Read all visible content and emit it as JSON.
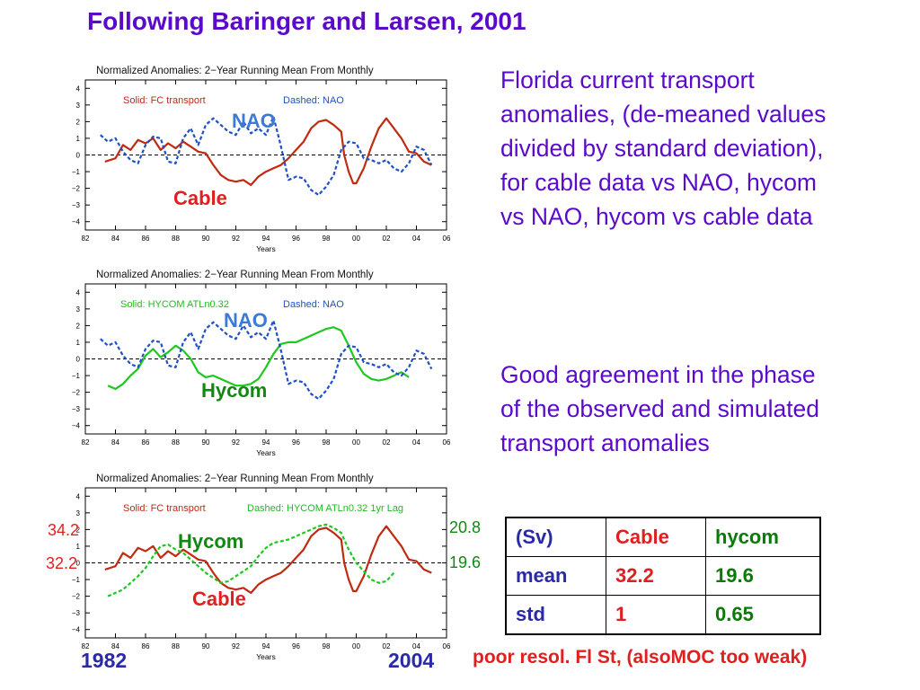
{
  "slide": {
    "title": "Following Baringer and Larsen, 2001",
    "paragraph1": "Florida current transport anomalies, (de-meaned values divided by standard deviation), for cable data vs NAO, hycom vs NAO, hycom vs cable data",
    "paragraph2": "Good agreement in the phase of the observed and simulated transport anomalies",
    "note": "poor resol. Fl St, (alsoMOC too weak)",
    "year_start": "1982",
    "year_end": "2004"
  },
  "colors": {
    "text_purple": "#5a0ac8",
    "red": "#c02a10",
    "green": "#1ec81e",
    "nao_blue": "#1e50c8",
    "label_blue": "#3c7ad8"
  },
  "table": {
    "header": [
      "(Sv)",
      "Cable",
      "hycom"
    ],
    "rows": [
      [
        "mean",
        "32.2",
        "19.6"
      ],
      [
        "std",
        "1",
        "0.65"
      ]
    ]
  },
  "chart_data": [
    {
      "type": "line",
      "title": "Normalized Anomalies: 2−Year Running Mean From Monthly",
      "xlabel": "Years",
      "ylabel": "",
      "xlim": [
        82,
        106
      ],
      "ylim": [
        -4.5,
        4.5
      ],
      "xticks": [
        "82",
        "84",
        "86",
        "88",
        "90",
        "92",
        "94",
        "96",
        "98",
        "00",
        "02",
        "04",
        "06"
      ],
      "yticks": [
        "4",
        "3",
        "2",
        "1",
        "0",
        "−1",
        "−2",
        "−3",
        "−4"
      ],
      "grid": false,
      "legend": [
        "Solid: FC transport",
        "Dashed: NAO"
      ],
      "series": [
        {
          "name": "FC transport",
          "style": "solid",
          "color": "#c02a10",
          "x": [
            83.3,
            84,
            84.5,
            85,
            85.5,
            86,
            86.5,
            87,
            87.5,
            88,
            88.5,
            89,
            89.5,
            90,
            90.5,
            91,
            91.5,
            92,
            92.5,
            93,
            93.5,
            94,
            94.5,
            95,
            95.5,
            96,
            96.5,
            97,
            97.5,
            98,
            98.5,
            99,
            99.2,
            99.5,
            99.8,
            100,
            100.5,
            101,
            101.5,
            102,
            102.5,
            103,
            103.5,
            104,
            104.5,
            105
          ],
          "y": [
            -0.4,
            -0.2,
            0.6,
            0.3,
            0.9,
            0.7,
            1.0,
            0.3,
            0.7,
            0.4,
            0.8,
            0.5,
            0.2,
            0.1,
            -0.6,
            -1.2,
            -1.5,
            -1.6,
            -1.5,
            -1.8,
            -1.3,
            -1.0,
            -0.8,
            -0.6,
            -0.2,
            0.3,
            0.8,
            1.6,
            2.0,
            2.1,
            1.8,
            1.4,
            0.0,
            -1.0,
            -1.7,
            -1.7,
            -0.8,
            0.5,
            1.6,
            2.2,
            1.6,
            1.0,
            0.2,
            0.1,
            -0.4,
            -0.6
          ]
        },
        {
          "name": "NAO",
          "style": "dashed",
          "color": "#1e50c8",
          "x": [
            83,
            83.5,
            84,
            84.5,
            85,
            85.5,
            86,
            86.5,
            87,
            87.5,
            88,
            88.5,
            89,
            89.5,
            90,
            90.5,
            91,
            91.5,
            92,
            92.5,
            93,
            93.5,
            94,
            94.5,
            95,
            95.5,
            96,
            96.5,
            97,
            97.5,
            98,
            98.5,
            99,
            99.5,
            100,
            100.5,
            101,
            101.5,
            102,
            102.5,
            103,
            103.5,
            104,
            104.5,
            105
          ],
          "y": [
            1.2,
            0.8,
            1.0,
            0.2,
            -0.3,
            -0.5,
            0.6,
            1.1,
            1.0,
            -0.4,
            -0.5,
            1.0,
            1.6,
            0.6,
            1.8,
            2.2,
            1.8,
            1.4,
            1.2,
            2.0,
            1.3,
            1.6,
            1.2,
            2.3,
            0.5,
            -1.5,
            -1.3,
            -1.4,
            -2.1,
            -2.4,
            -1.9,
            -1.2,
            0.3,
            0.8,
            0.7,
            -0.2,
            -0.3,
            -0.5,
            -0.3,
            -0.8,
            -1.0,
            -0.5,
            0.5,
            0.3,
            -0.6
          ]
        }
      ],
      "annotations": [
        "NAO",
        "Cable"
      ]
    },
    {
      "type": "line",
      "title": "Normalized Anomalies: 2−Year Running Mean From Monthly",
      "xlabel": "Years",
      "ylabel": "",
      "xlim": [
        82,
        106
      ],
      "ylim": [
        -4.5,
        4.5
      ],
      "xticks": [
        "82",
        "84",
        "86",
        "88",
        "90",
        "92",
        "94",
        "96",
        "98",
        "00",
        "02",
        "04",
        "06"
      ],
      "yticks": [
        "4",
        "3",
        "2",
        "1",
        "0",
        "−1",
        "−2",
        "−3",
        "−4"
      ],
      "grid": false,
      "legend": [
        "Solid: HYCOM ATLn0.32",
        "Dashed: NAO"
      ],
      "series": [
        {
          "name": "HYCOM ATLn0.32",
          "style": "solid",
          "color": "#1ec81e",
          "x": [
            83.5,
            84,
            84.5,
            85,
            85.5,
            86,
            86.5,
            87,
            87.5,
            88,
            88.5,
            89,
            89.5,
            90,
            90.5,
            91,
            91.5,
            92,
            92.5,
            93,
            93.5,
            94,
            94.5,
            95,
            95.5,
            96,
            96.5,
            97,
            97.5,
            98,
            98.5,
            99,
            99.5,
            100,
            100.5,
            101,
            101.5,
            102,
            102.5,
            103,
            103.5
          ],
          "y": [
            -1.6,
            -1.8,
            -1.5,
            -1.0,
            -0.6,
            0.2,
            0.6,
            0.1,
            0.4,
            0.8,
            0.5,
            0.0,
            -0.8,
            -1.1,
            -1.0,
            -1.2,
            -1.4,
            -1.6,
            -1.6,
            -1.5,
            -1.2,
            -0.5,
            0.3,
            0.9,
            1.0,
            1.0,
            1.2,
            1.4,
            1.6,
            1.8,
            1.9,
            1.7,
            0.8,
            -0.2,
            -0.9,
            -1.2,
            -1.3,
            -1.2,
            -1.0,
            -0.8,
            -1.1
          ]
        },
        {
          "name": "NAO",
          "style": "dashed",
          "color": "#1e50c8",
          "x": [
            83,
            83.5,
            84,
            84.5,
            85,
            85.5,
            86,
            86.5,
            87,
            87.5,
            88,
            88.5,
            89,
            89.5,
            90,
            90.5,
            91,
            91.5,
            92,
            92.5,
            93,
            93.5,
            94,
            94.5,
            95,
            95.5,
            96,
            96.5,
            97,
            97.5,
            98,
            98.5,
            99,
            99.5,
            100,
            100.5,
            101,
            101.5,
            102,
            102.5,
            103,
            103.5,
            104,
            104.5,
            105
          ],
          "y": [
            1.2,
            0.8,
            1.0,
            0.2,
            -0.3,
            -0.5,
            0.6,
            1.1,
            1.0,
            -0.4,
            -0.5,
            1.0,
            1.6,
            0.6,
            1.8,
            2.2,
            1.8,
            1.4,
            1.2,
            2.0,
            1.3,
            1.6,
            1.2,
            2.3,
            0.5,
            -1.5,
            -1.3,
            -1.4,
            -2.1,
            -2.4,
            -1.9,
            -1.2,
            0.3,
            0.8,
            0.7,
            -0.2,
            -0.3,
            -0.5,
            -0.3,
            -0.8,
            -1.0,
            -0.5,
            0.5,
            0.3,
            -0.6
          ]
        }
      ],
      "annotations": [
        "NAO",
        "Hycom"
      ]
    },
    {
      "type": "line",
      "title": "Normalized Anomalies: 2−Year Running Mean From Monthly",
      "xlabel": "Years",
      "ylabel": "",
      "xlim": [
        82,
        106
      ],
      "ylim": [
        -4.5,
        4.5
      ],
      "xticks": [
        "82",
        "84",
        "86",
        "88",
        "90",
        "92",
        "94",
        "96",
        "98",
        "00",
        "02",
        "04",
        "06"
      ],
      "yticks": [
        "4",
        "3",
        "2",
        "1",
        "0",
        "−1",
        "−2",
        "−3",
        "−4"
      ],
      "grid": false,
      "legend": [
        "Solid: FC transport",
        "Dashed: HYCOM ATLn0.32 1yr Lag"
      ],
      "series": [
        {
          "name": "FC transport",
          "style": "solid",
          "color": "#c02a10",
          "x": [
            83.3,
            84,
            84.5,
            85,
            85.5,
            86,
            86.5,
            87,
            87.5,
            88,
            88.5,
            89,
            89.5,
            90,
            90.5,
            91,
            91.5,
            92,
            92.5,
            93,
            93.5,
            94,
            94.5,
            95,
            95.5,
            96,
            96.5,
            97,
            97.5,
            98,
            98.5,
            99,
            99.2,
            99.5,
            99.8,
            100,
            100.5,
            101,
            101.5,
            102,
            102.5,
            103,
            103.5,
            104,
            104.5,
            105
          ],
          "y": [
            -0.4,
            -0.2,
            0.6,
            0.3,
            0.9,
            0.7,
            1.0,
            0.3,
            0.7,
            0.4,
            0.8,
            0.5,
            0.2,
            0.1,
            -0.6,
            -1.2,
            -1.5,
            -1.6,
            -1.5,
            -1.8,
            -1.3,
            -1.0,
            -0.8,
            -0.6,
            -0.2,
            0.3,
            0.8,
            1.6,
            2.0,
            2.1,
            1.8,
            1.4,
            0.0,
            -1.0,
            -1.7,
            -1.7,
            -0.8,
            0.5,
            1.6,
            2.2,
            1.6,
            1.0,
            0.2,
            0.1,
            -0.4,
            -0.6
          ]
        },
        {
          "name": "HYCOM ATLn0.32 1yr Lag",
          "style": "dashed",
          "color": "#1ec81e",
          "x": [
            83.5,
            84,
            84.5,
            85,
            85.5,
            86,
            86.5,
            87,
            87.5,
            88,
            88.5,
            89,
            89.5,
            90,
            90.5,
            91,
            91.5,
            92,
            92.5,
            93,
            93.5,
            94,
            94.5,
            95,
            95.5,
            96,
            96.5,
            97,
            97.5,
            98,
            98.5,
            99,
            99.5,
            100,
            100.5,
            101,
            101.5,
            102,
            102.5
          ],
          "y": [
            -2.0,
            -1.8,
            -1.6,
            -1.2,
            -0.8,
            -0.3,
            0.4,
            1.0,
            1.1,
            0.8,
            0.6,
            0.2,
            -0.2,
            -0.6,
            -0.9,
            -1.2,
            -1.1,
            -0.8,
            -0.5,
            -0.2,
            0.4,
            0.9,
            1.2,
            1.3,
            1.4,
            1.6,
            1.8,
            2.0,
            2.2,
            2.3,
            2.1,
            1.8,
            0.8,
            0.0,
            -0.5,
            -1.0,
            -1.2,
            -1.1,
            -0.6
          ]
        }
      ],
      "annotations": [
        "Hycom",
        "Cable"
      ],
      "side_labels": {
        "left_top": "34.2",
        "left_bottom": "32.2",
        "right_top": "20.8",
        "right_bottom": "19.6"
      }
    }
  ]
}
